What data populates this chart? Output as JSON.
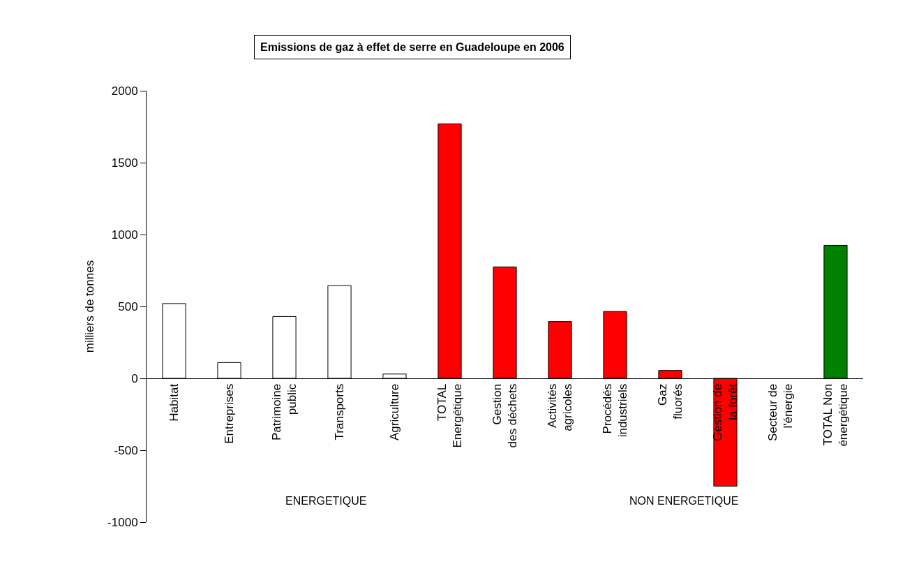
{
  "chart_data": {
    "type": "bar",
    "title": "Emissions de gaz à effet de serre en Guadeloupe en 2006",
    "ylabel": "milliers de tonnes",
    "categories": [
      "Habitat",
      "Entreprises",
      "Patrimoine public",
      "Transports",
      "Agriculture",
      "TOTAL Energétique",
      "Gestion des déchets",
      "Activités agricoles",
      "Procédés industriels",
      "Gaz fluorés",
      "Gestion de la forêt",
      "Secteur de l'énergie",
      "TOTAL Non énergétique"
    ],
    "values": [
      520,
      110,
      430,
      645,
      30,
      1770,
      775,
      395,
      465,
      55,
      -750,
      null,
      925
    ],
    "colors": [
      "#ffffff",
      "#ffffff",
      "#ffffff",
      "#ffffff",
      "#ffffff",
      "#ff0000",
      "#ff0000",
      "#ff0000",
      "#ff0000",
      "#ff0000",
      "#ff0000",
      "#ff0000",
      "#008000"
    ],
    "annotations": [
      "ENERGETIQUE",
      "NON ENERGETIQUE"
    ],
    "ylim": [
      -1000,
      2000
    ],
    "yticks": [
      -1000,
      -500,
      0,
      500,
      1000,
      1500,
      2000
    ],
    "legend": false
  }
}
